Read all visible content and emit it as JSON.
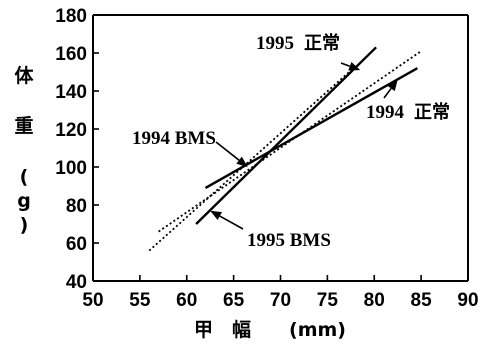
{
  "chart_data": {
    "type": "line",
    "title": "",
    "xlabel": "甲　幅　　(mm)",
    "ylabel": "体重(g)",
    "xlim": [
      50,
      90
    ],
    "ylim": [
      40,
      180
    ],
    "x_ticks": [
      50,
      55,
      60,
      65,
      70,
      75,
      80,
      85,
      90
    ],
    "y_ticks": [
      40,
      60,
      80,
      100,
      120,
      140,
      160,
      180
    ],
    "grid": false,
    "series": [
      {
        "name": "1995 正常",
        "style": "solid",
        "x": [
          61,
          80.2
        ],
        "y": [
          70,
          163
        ]
      },
      {
        "name": "1994 正常",
        "style": "solid",
        "x": [
          62,
          84.6
        ],
        "y": [
          89,
          152
        ]
      },
      {
        "name": "1995 BMS",
        "style": "dotted",
        "x": [
          56,
          78
        ],
        "y": [
          56,
          153
        ]
      },
      {
        "name": "1994 BMS",
        "style": "dotted",
        "x": [
          57,
          85
        ],
        "y": [
          66,
          161
        ]
      }
    ],
    "annotations": [
      {
        "text_a": "1995",
        "text_b": "正常",
        "points_to": [
          78.5,
          151
        ]
      },
      {
        "text_a": "1994",
        "text_b": "正常",
        "points_to": [
          82.5,
          146
        ]
      },
      {
        "text_a": "1994 BMS",
        "text_b": "",
        "points_to": [
          66.5,
          100
        ]
      },
      {
        "text_a": "1995 BMS",
        "text_b": "",
        "points_to": [
          62.5,
          77
        ]
      }
    ]
  }
}
